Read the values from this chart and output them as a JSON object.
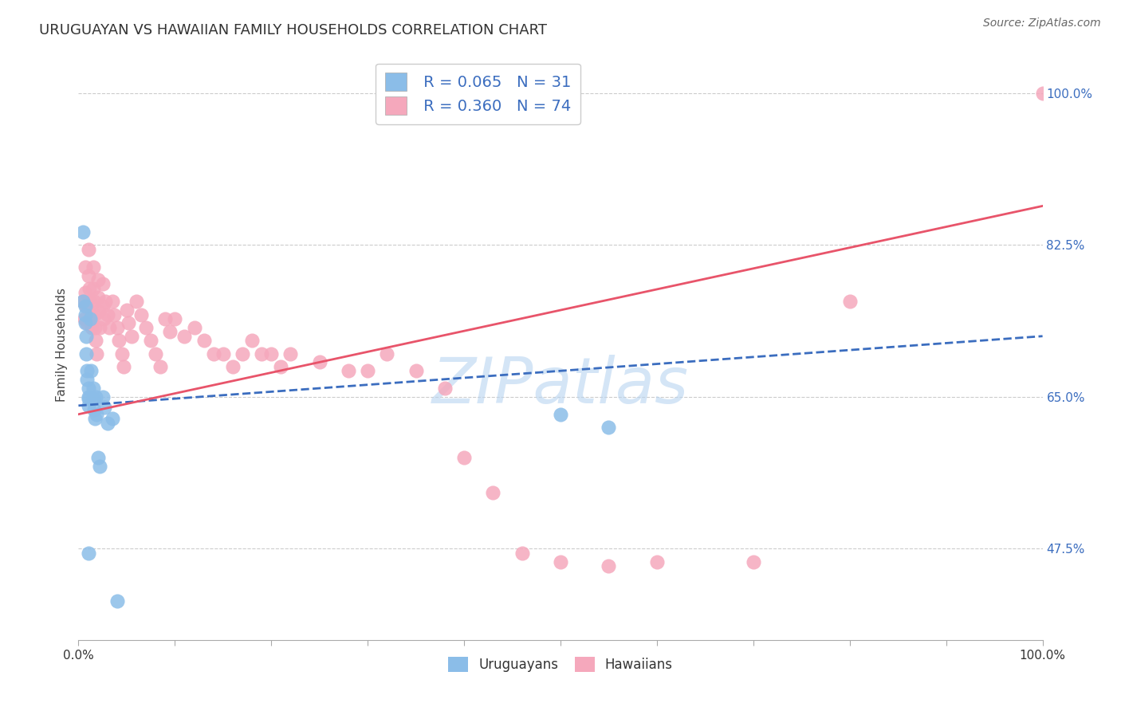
{
  "title": "URUGUAYAN VS HAWAIIAN FAMILY HOUSEHOLDS CORRELATION CHART",
  "source": "Source: ZipAtlas.com",
  "ylabel": "Family Households",
  "ytick_labels": [
    "47.5%",
    "65.0%",
    "82.5%",
    "100.0%"
  ],
  "ytick_values": [
    0.475,
    0.65,
    0.825,
    1.0
  ],
  "xlim": [
    0.0,
    1.0
  ],
  "ylim": [
    0.37,
    1.05
  ],
  "legend_blue_r": "R = 0.065",
  "legend_blue_n": "N = 31",
  "legend_pink_r": "R = 0.360",
  "legend_pink_n": "N = 74",
  "blue_color": "#8bbde8",
  "pink_color": "#f5a8bc",
  "blue_line_color": "#3b6dbf",
  "pink_line_color": "#e8546a",
  "axis_label_color": "#3b6dbf",
  "watermark": "ZIPatlas",
  "uruguayan_x": [
    0.005,
    0.005,
    0.007,
    0.007,
    0.007,
    0.008,
    0.008,
    0.009,
    0.009,
    0.01,
    0.01,
    0.01,
    0.01,
    0.01,
    0.012,
    0.013,
    0.015,
    0.015,
    0.016,
    0.017,
    0.018,
    0.019,
    0.02,
    0.022,
    0.025,
    0.027,
    0.03,
    0.035,
    0.04,
    0.5,
    0.55
  ],
  "uruguayan_y": [
    0.84,
    0.76,
    0.755,
    0.745,
    0.735,
    0.72,
    0.7,
    0.68,
    0.67,
    0.66,
    0.65,
    0.648,
    0.64,
    0.47,
    0.74,
    0.68,
    0.66,
    0.648,
    0.635,
    0.625,
    0.65,
    0.63,
    0.58,
    0.57,
    0.65,
    0.638,
    0.62,
    0.625,
    0.415,
    0.63,
    0.615
  ],
  "hawaiian_x": [
    0.005,
    0.006,
    0.007,
    0.007,
    0.008,
    0.009,
    0.01,
    0.01,
    0.011,
    0.012,
    0.013,
    0.014,
    0.015,
    0.015,
    0.016,
    0.016,
    0.017,
    0.018,
    0.019,
    0.02,
    0.02,
    0.021,
    0.022,
    0.025,
    0.025,
    0.026,
    0.028,
    0.03,
    0.032,
    0.035,
    0.037,
    0.04,
    0.042,
    0.045,
    0.047,
    0.05,
    0.052,
    0.055,
    0.06,
    0.065,
    0.07,
    0.075,
    0.08,
    0.085,
    0.09,
    0.095,
    0.1,
    0.11,
    0.12,
    0.13,
    0.14,
    0.15,
    0.16,
    0.17,
    0.18,
    0.19,
    0.2,
    0.21,
    0.22,
    0.25,
    0.28,
    0.3,
    0.32,
    0.35,
    0.38,
    0.4,
    0.43,
    0.46,
    0.5,
    0.55,
    0.6,
    0.7,
    0.8,
    1.0
  ],
  "hawaiian_y": [
    0.76,
    0.74,
    0.8,
    0.77,
    0.755,
    0.735,
    0.82,
    0.79,
    0.775,
    0.76,
    0.745,
    0.73,
    0.8,
    0.775,
    0.76,
    0.745,
    0.73,
    0.715,
    0.7,
    0.785,
    0.765,
    0.748,
    0.73,
    0.78,
    0.755,
    0.74,
    0.76,
    0.745,
    0.73,
    0.76,
    0.745,
    0.73,
    0.715,
    0.7,
    0.685,
    0.75,
    0.735,
    0.72,
    0.76,
    0.745,
    0.73,
    0.715,
    0.7,
    0.685,
    0.74,
    0.725,
    0.74,
    0.72,
    0.73,
    0.715,
    0.7,
    0.7,
    0.685,
    0.7,
    0.715,
    0.7,
    0.7,
    0.685,
    0.7,
    0.69,
    0.68,
    0.68,
    0.7,
    0.68,
    0.66,
    0.58,
    0.54,
    0.47,
    0.46,
    0.455,
    0.46,
    0.46,
    0.76,
    1.0
  ]
}
